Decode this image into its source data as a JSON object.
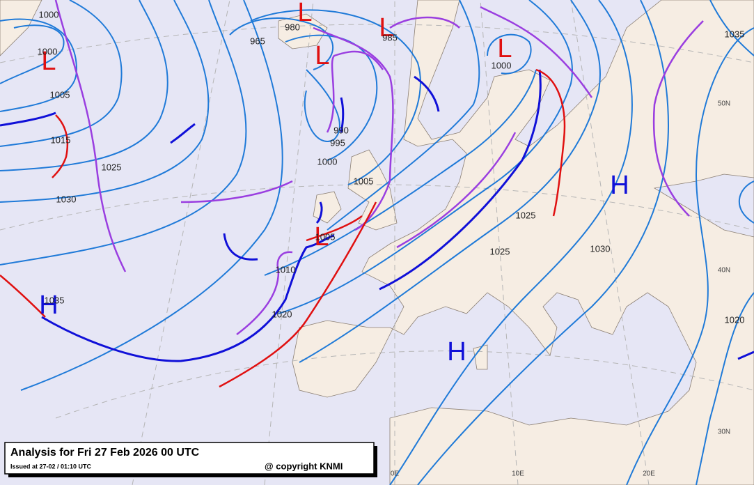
{
  "map": {
    "pressure_centers": [
      {
        "label": "L"
      },
      {
        "label": "L"
      },
      {
        "label": "L"
      },
      {
        "label": "L"
      },
      {
        "label": "L"
      },
      {
        "label": "L"
      },
      {
        "label": "H"
      },
      {
        "label": "H"
      },
      {
        "label": "H"
      }
    ],
    "isobar_labels": [
      "1000",
      "1000",
      "1005",
      "1015",
      "1025",
      "1030",
      "965",
      "980",
      "985",
      "990",
      "995",
      "1000",
      "1005",
      "1005",
      "1010",
      "1020",
      "1035",
      "1000",
      "1025",
      "1025",
      "1030",
      "1035",
      "1020"
    ],
    "graticule_labels": [
      "50N",
      "40N",
      "30N",
      "0E",
      "10E",
      "20E"
    ]
  },
  "caption": {
    "title": "Analysis for Fri 27 Feb 2026 00 UTC",
    "issued": "Issued at 27-02 / 01:10 UTC",
    "copyright": "@ copyright KNMI"
  }
}
